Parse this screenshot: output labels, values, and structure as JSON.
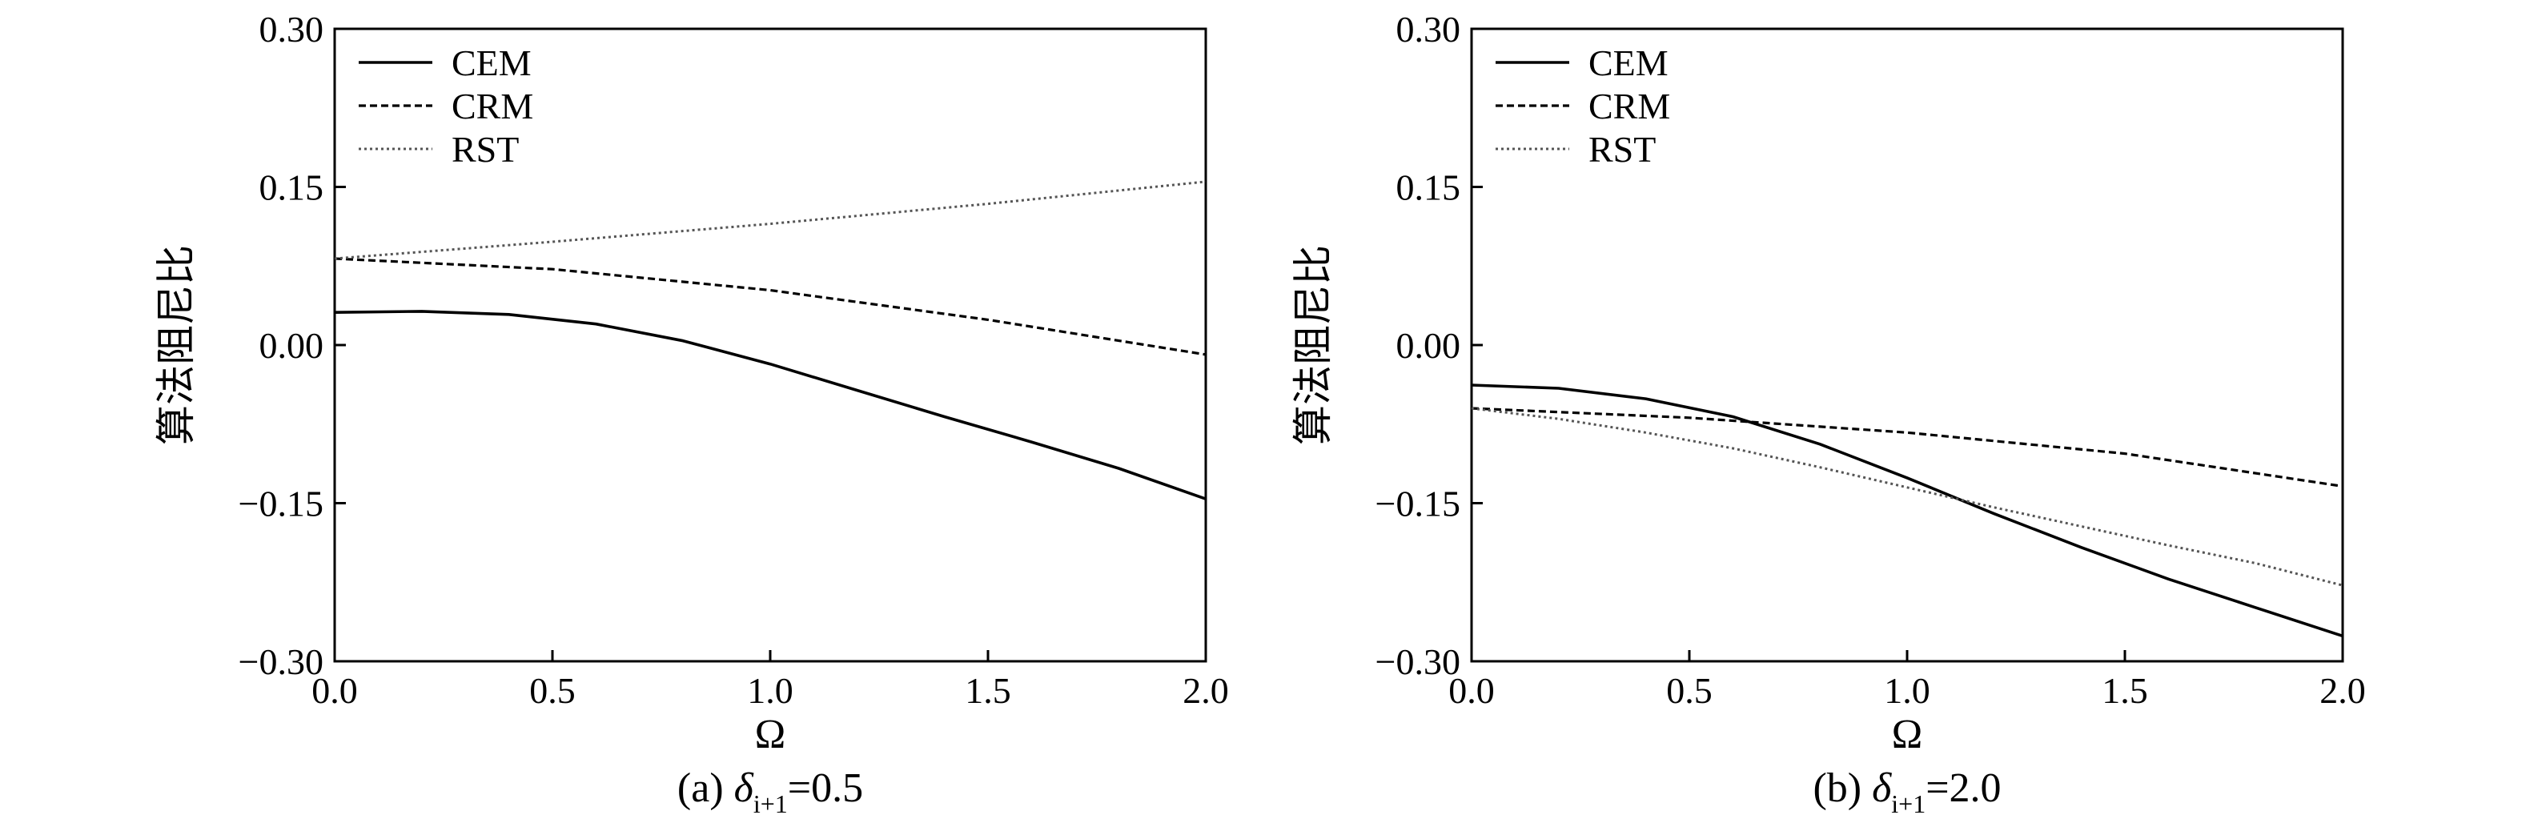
{
  "chart_data": [
    {
      "type": "line",
      "caption": {
        "prefix": "(a) ",
        "symbol": "δ",
        "subscript": "i+1",
        "suffix": "=0.5"
      },
      "xlabel": "Ω",
      "ylabel": "算法阻尼比",
      "xlim": [
        0,
        2
      ],
      "ylim": [
        -0.3,
        0.3
      ],
      "xticks": [
        "0.0",
        "0.5",
        "1.0",
        "1.5",
        "2.0"
      ],
      "yticks": [
        "0.30",
        "0.15",
        "0.00",
        "−0.15",
        "−0.30"
      ],
      "legend_position": "top-left",
      "series": [
        {
          "name": "CEM",
          "style": "solid",
          "x": [
            0,
            0.2,
            0.4,
            0.6,
            0.8,
            1.0,
            1.2,
            1.4,
            1.6,
            1.8,
            2.0
          ],
          "y": [
            0.031,
            0.032,
            0.029,
            0.02,
            0.004,
            -0.018,
            -0.043,
            -0.068,
            -0.092,
            -0.117,
            -0.146
          ]
        },
        {
          "name": "CRM",
          "style": "dashed",
          "x": [
            0,
            0.5,
            1.0,
            1.5,
            2.0
          ],
          "y": [
            0.082,
            0.072,
            0.052,
            0.024,
            -0.009
          ]
        },
        {
          "name": "RST",
          "style": "dotted",
          "x": [
            0,
            0.5,
            1.0,
            1.5,
            2.0
          ],
          "y": [
            0.082,
            0.098,
            0.115,
            0.134,
            0.155
          ]
        }
      ]
    },
    {
      "type": "line",
      "caption": {
        "prefix": "(b) ",
        "symbol": "δ",
        "subscript": "i+1",
        "suffix": "=2.0"
      },
      "xlabel": "Ω",
      "ylabel": "算法阻尼比",
      "xlim": [
        0,
        2
      ],
      "ylim": [
        -0.3,
        0.3
      ],
      "xticks": [
        "0.0",
        "0.5",
        "1.0",
        "1.5",
        "2.0"
      ],
      "yticks": [
        "0.30",
        "0.15",
        "0.00",
        "−0.15",
        "−0.30"
      ],
      "legend_position": "top-left",
      "series": [
        {
          "name": "CEM",
          "style": "solid",
          "x": [
            0,
            0.2,
            0.4,
            0.6,
            0.8,
            1.0,
            1.2,
            1.4,
            1.6,
            1.8,
            2.0
          ],
          "y": [
            -0.038,
            -0.041,
            -0.051,
            -0.068,
            -0.094,
            -0.126,
            -0.16,
            -0.192,
            -0.222,
            -0.249,
            -0.276
          ]
        },
        {
          "name": "CRM",
          "style": "dashed",
          "x": [
            0,
            0.5,
            1.0,
            1.5,
            2.0
          ],
          "y": [
            -0.06,
            -0.069,
            -0.083,
            -0.103,
            -0.134
          ]
        },
        {
          "name": "RST",
          "style": "dotted",
          "x": [
            0,
            0.2,
            0.4,
            0.6,
            0.8,
            1.0,
            1.2,
            1.4,
            1.6,
            1.8,
            2.0
          ],
          "y": [
            -0.06,
            -0.07,
            -0.083,
            -0.098,
            -0.116,
            -0.135,
            -0.154,
            -0.172,
            -0.19,
            -0.207,
            -0.228
          ]
        }
      ]
    }
  ]
}
